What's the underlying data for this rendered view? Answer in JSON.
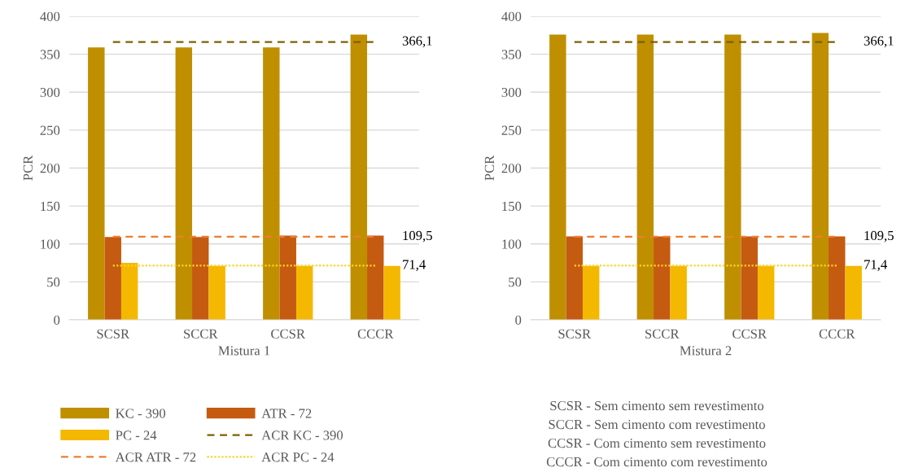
{
  "chart_data": [
    {
      "type": "bar",
      "xlabel": "Mistura 1",
      "ylabel": "PCR",
      "categories": [
        "SCSR",
        "SCCR",
        "CCSR",
        "CCCR"
      ],
      "ylim": [
        0,
        400
      ],
      "yticks": [
        0,
        50,
        100,
        150,
        200,
        250,
        300,
        350,
        400
      ],
      "grid": "y",
      "legend": "bottom",
      "series": [
        {
          "name": "KC - 390",
          "color": "#bf8f00",
          "values": [
            359,
            359,
            359,
            376
          ]
        },
        {
          "name": "ATR - 72",
          "color": "#c55a11",
          "values": [
            109,
            109,
            111,
            111
          ]
        },
        {
          "name": "PC - 24",
          "color": "#f4b800",
          "values": [
            75,
            71,
            71,
            71
          ]
        },
        {
          "name": "ACR KC - 390",
          "type": "line",
          "line_style": "dashed",
          "color": "#7f6000",
          "values": [
            366.1,
            366.1,
            366.1,
            366.1
          ]
        },
        {
          "name": "ACR ATR - 72",
          "type": "line",
          "line_style": "dashed",
          "color": "#ed7d31",
          "values": [
            109.5,
            109.5,
            109.5,
            109.5
          ]
        },
        {
          "name": "ACR PC - 24",
          "type": "line",
          "line_style": "dotted",
          "color": "#ffd21f",
          "values": [
            71.4,
            71.4,
            71.4,
            71.4
          ]
        }
      ],
      "annotations": [
        {
          "text": "366,1",
          "x": "CCCR",
          "y": 366.1
        },
        {
          "text": "109,5",
          "x": "CCCR",
          "y": 109.5
        },
        {
          "text": "71,4",
          "x": "CCCR",
          "y": 71.4
        }
      ]
    },
    {
      "type": "bar",
      "xlabel": "Mistura 2",
      "ylabel": "PCR",
      "categories": [
        "SCSR",
        "SCCR",
        "CCSR",
        "CCCR"
      ],
      "ylim": [
        0,
        400
      ],
      "yticks": [
        0,
        50,
        100,
        150,
        200,
        250,
        300,
        350,
        400
      ],
      "grid": "y",
      "annotations": [
        {
          "text": "366,1",
          "x": "CCCR",
          "y": 366.1
        },
        {
          "text": "109,5",
          "x": "CCCR",
          "y": 109.5
        },
        {
          "text": "71,4",
          "x": "CCCR",
          "y": 71.4
        },
        "SCSR - Sem cimento sem revestimento",
        "SCCR - Sem cimento com revestimento",
        "CCSR - Com cimento sem revestimento",
        "CCCR - Com cimento com revestimento"
      ],
      "series": [
        {
          "color": "#bf8f00",
          "values": [
            376,
            376,
            376,
            378
          ]
        },
        {
          "color": "#c55a11",
          "values": [
            110,
            110,
            110,
            110
          ]
        },
        {
          "color": "#f4b800",
          "values": [
            71,
            71,
            71,
            71
          ]
        },
        {
          "type": "line",
          "line_style": "dashed",
          "color": "#7f6000",
          "values": [
            366.1,
            366.1,
            366.1,
            366.1
          ]
        },
        {
          "type": "line",
          "line_style": "dashed",
          "color": "#ed7d31",
          "values": [
            109.5,
            109.5,
            109.5,
            109.5
          ]
        },
        {
          "type": "line",
          "line_style": "dotted",
          "color": "#ffd21f",
          "values": [
            71.4,
            71.4,
            71.4,
            71.4
          ]
        }
      ]
    }
  ]
}
